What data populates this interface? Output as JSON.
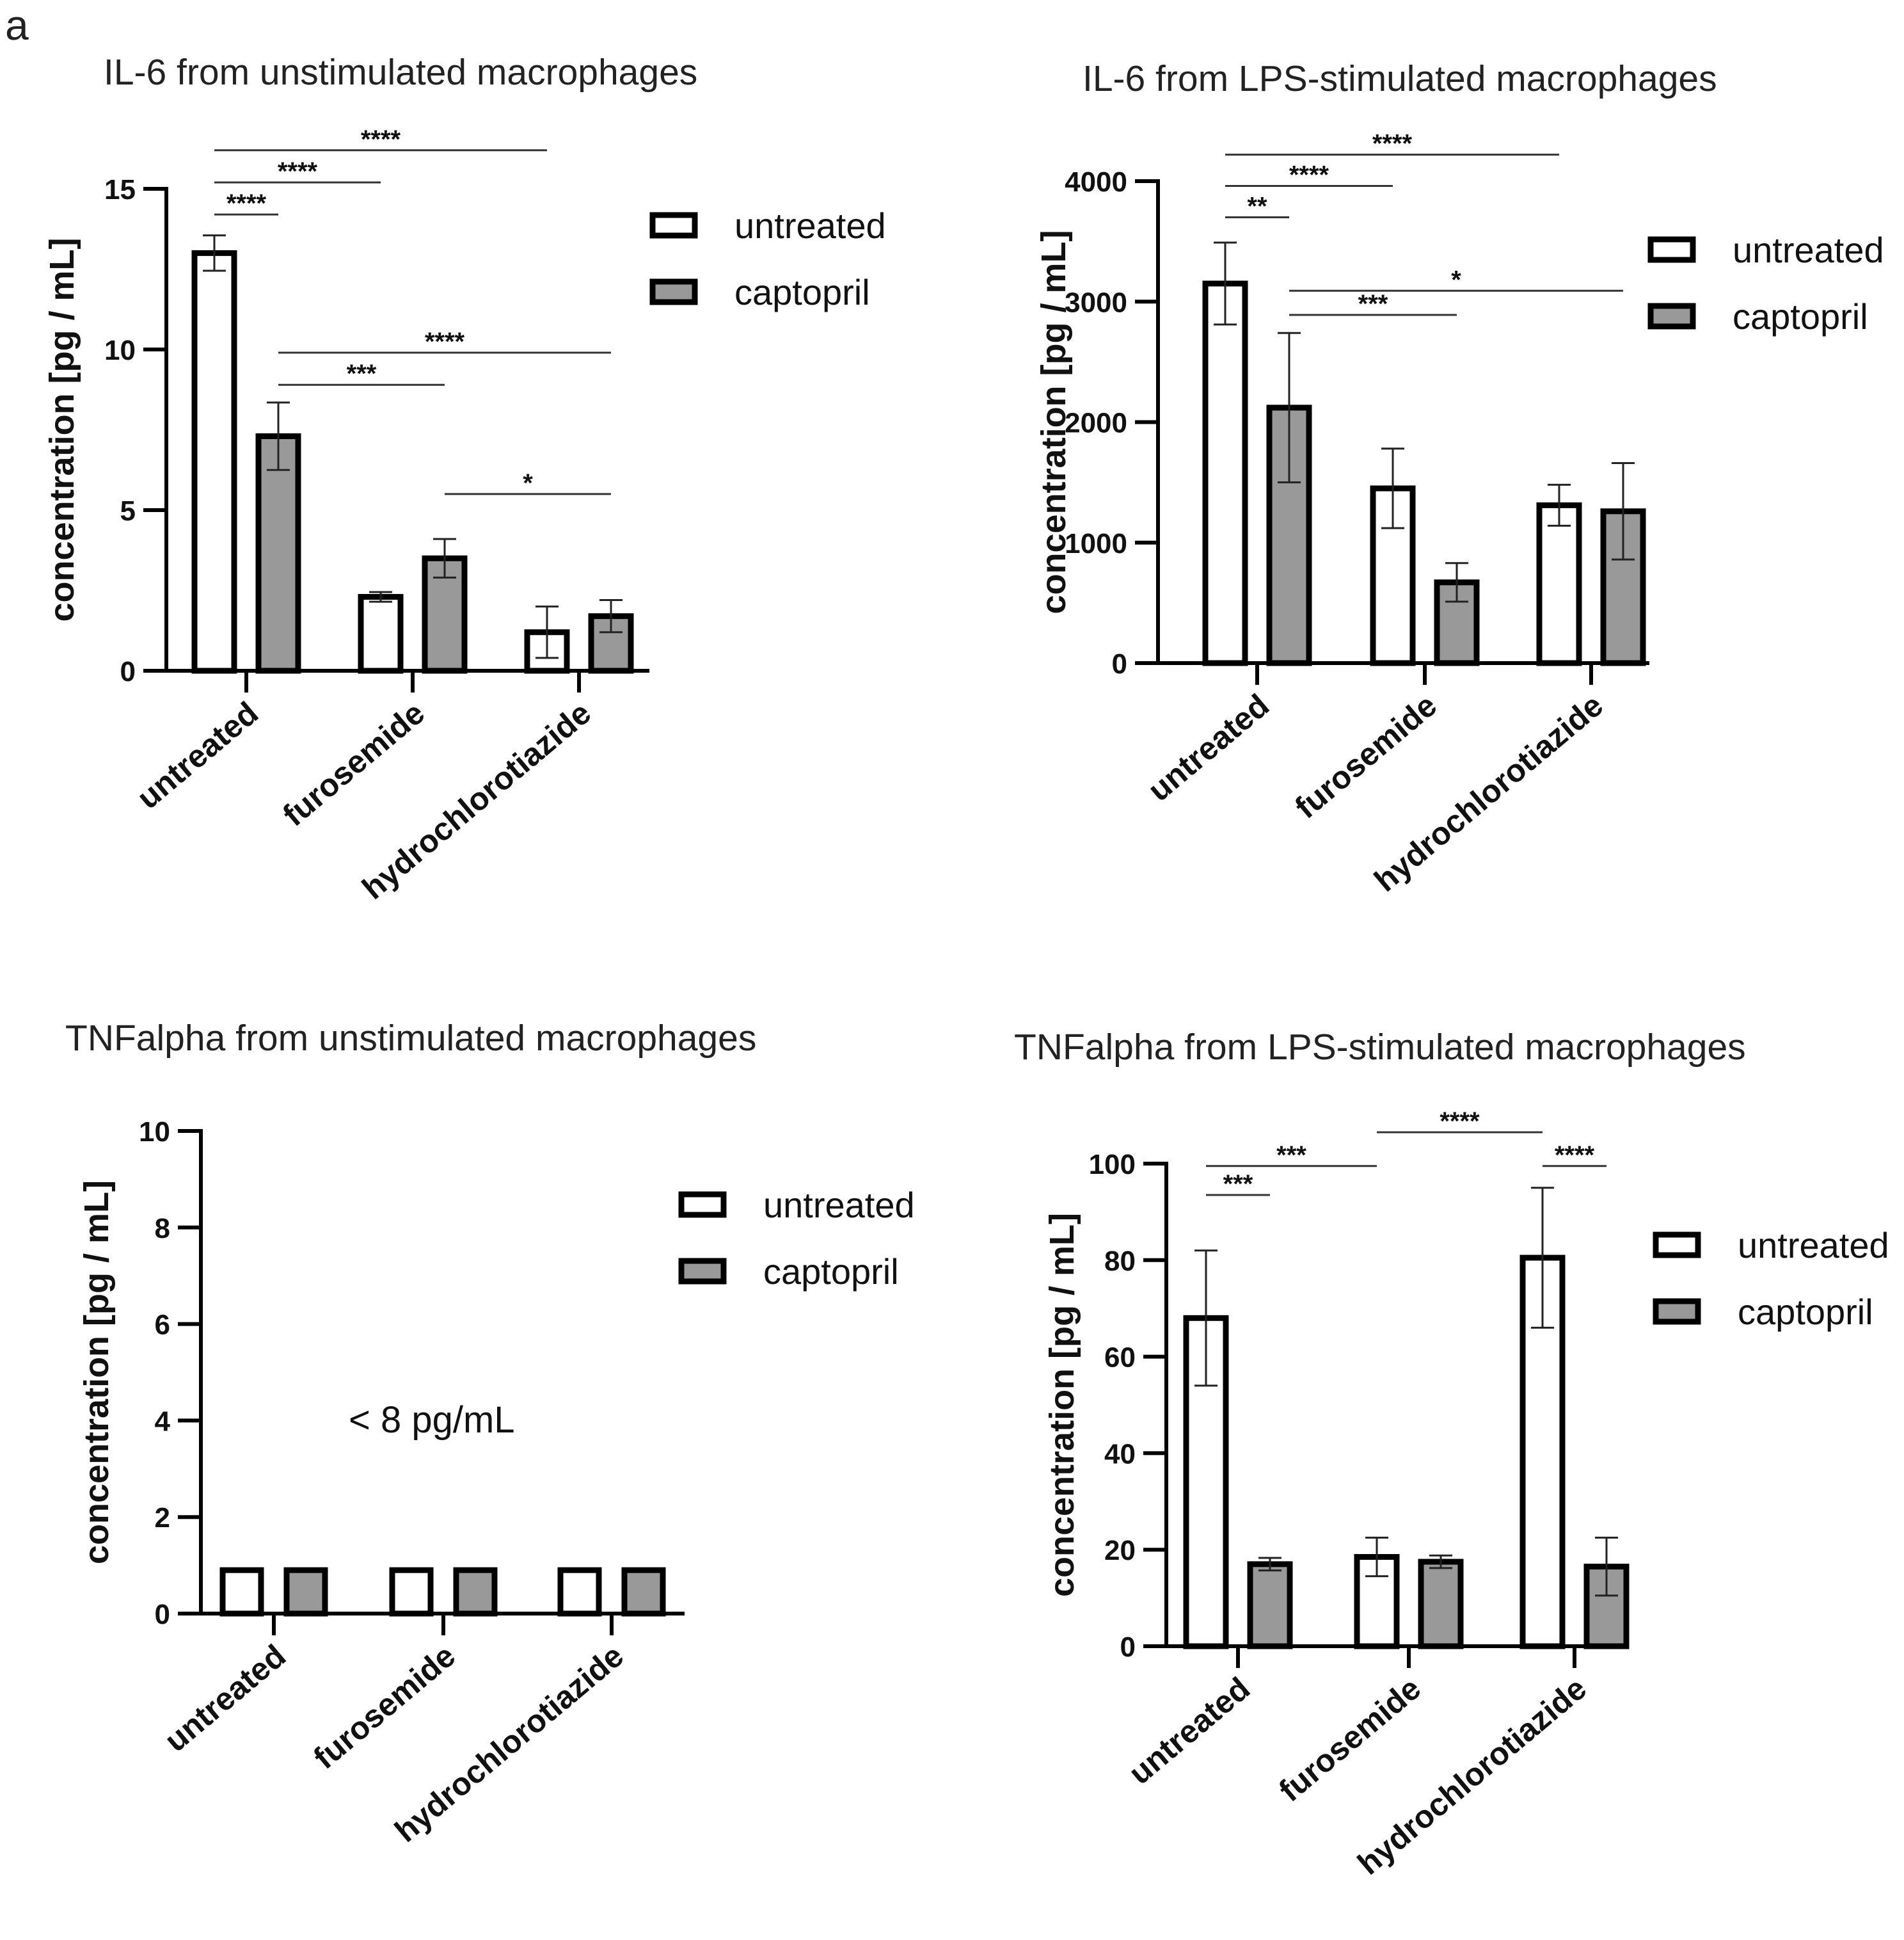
{
  "panel_letter": "a",
  "colors": {
    "untreated": "#ffffff",
    "captopril": "#999999",
    "stroke": "#000000"
  },
  "chart_data": [
    {
      "type": "bar",
      "id": "il6-unstim",
      "title": "IL-6 from unstimulated macrophages",
      "ylabel": "concentration [pg / mL]",
      "ylim": [
        0,
        15
      ],
      "yticks": [
        0,
        5,
        10,
        15
      ],
      "categories": [
        "untreated",
        "furosemide",
        "hydrochlorotiazide"
      ],
      "series": [
        {
          "name": "untreated",
          "values": [
            13.0,
            2.3,
            1.2
          ],
          "errors": [
            0.55,
            0.15,
            0.8
          ]
        },
        {
          "name": "captopril",
          "values": [
            7.3,
            3.5,
            1.7
          ],
          "errors": [
            1.05,
            0.6,
            0.5
          ]
        }
      ],
      "significance": [
        {
          "label": "****",
          "from": [
            0,
            0
          ],
          "to": [
            0,
            1
          ],
          "y": 14.2
        },
        {
          "label": "****",
          "from": [
            0,
            0
          ],
          "to": [
            1,
            0
          ],
          "y": 15.2
        },
        {
          "label": "****",
          "from": [
            0,
            0
          ],
          "to": [
            2,
            0
          ],
          "y": 16.2
        },
        {
          "label": "***",
          "from": [
            0,
            1
          ],
          "to": [
            1,
            1
          ],
          "y": 8.9
        },
        {
          "label": "****",
          "from": [
            0,
            1
          ],
          "to": [
            2,
            1
          ],
          "y": 9.9
        },
        {
          "label": "*",
          "from": [
            1,
            1
          ],
          "to": [
            2,
            1
          ],
          "y": 5.5
        }
      ],
      "legend": [
        "untreated",
        "captopril"
      ],
      "annotation": ""
    },
    {
      "type": "bar",
      "id": "il6-lps",
      "title": "IL-6 from LPS-stimulated macrophages",
      "ylabel": "concentration [pg / mL]",
      "ylim": [
        0,
        4000
      ],
      "yticks": [
        0,
        1000,
        2000,
        3000,
        4000
      ],
      "categories": [
        "untreated",
        "furosemide",
        "hydrochlorotiazide"
      ],
      "series": [
        {
          "name": "untreated",
          "values": [
            3150,
            1450,
            1310
          ],
          "errors": [
            340,
            330,
            170
          ]
        },
        {
          "name": "captopril",
          "values": [
            2120,
            670,
            1260
          ],
          "errors": [
            620,
            160,
            400
          ]
        }
      ],
      "significance": [
        {
          "label": "**",
          "from": [
            0,
            0
          ],
          "to": [
            0,
            1
          ],
          "y": 3700
        },
        {
          "label": "****",
          "from": [
            0,
            0
          ],
          "to": [
            1,
            0
          ],
          "y": 3960
        },
        {
          "label": "****",
          "from": [
            0,
            0
          ],
          "to": [
            2,
            0
          ],
          "y": 4220
        },
        {
          "label": "***",
          "from": [
            0,
            1
          ],
          "to": [
            1,
            1
          ],
          "y": 2890
        },
        {
          "label": "*",
          "from": [
            0,
            1
          ],
          "to": [
            2,
            1
          ],
          "y": 3090
        }
      ],
      "legend": [
        "untreated",
        "captopril"
      ],
      "annotation": ""
    },
    {
      "type": "bar",
      "id": "tnf-unstim",
      "title": "TNFalpha from unstimulated macrophages",
      "ylabel": "concentration [pg / mL]",
      "ylim": [
        0,
        10
      ],
      "yticks": [
        0,
        2,
        4,
        6,
        8,
        10
      ],
      "categories": [
        "untreated",
        "furosemide",
        "hydrochlorotiazide"
      ],
      "series": [
        {
          "name": "untreated",
          "values": [
            0.9,
            0.9,
            0.9
          ],
          "errors": [
            0,
            0,
            0
          ]
        },
        {
          "name": "captopril",
          "values": [
            0.9,
            0.9,
            0.9
          ],
          "errors": [
            0,
            0,
            0
          ]
        }
      ],
      "significance": [],
      "legend": [
        "untreated",
        "captopril"
      ],
      "annotation": "< 8 pg/mL"
    },
    {
      "type": "bar",
      "id": "tnf-lps",
      "title": "TNFalpha from LPS-stimulated macrophages",
      "ylabel": "concentration [pg / mL]",
      "ylim": [
        0,
        100
      ],
      "yticks": [
        0,
        20,
        40,
        60,
        80,
        100
      ],
      "categories": [
        "untreated",
        "furosemide",
        "hydrochlorotiazide"
      ],
      "series": [
        {
          "name": "untreated",
          "values": [
            68,
            18.5,
            80.5
          ],
          "errors": [
            14,
            4,
            14.5
          ]
        },
        {
          "name": "captopril",
          "values": [
            17,
            17.5,
            16.5
          ],
          "errors": [
            1.3,
            1.3,
            6
          ]
        }
      ],
      "significance": [
        {
          "label": "***",
          "from": [
            0,
            0
          ],
          "to": [
            0,
            1
          ],
          "y": 93.5
        },
        {
          "label": "***",
          "from": [
            0,
            0
          ],
          "to": [
            1,
            0
          ],
          "y": 99.5
        },
        {
          "label": "****",
          "from": [
            1,
            0
          ],
          "to": [
            2,
            0
          ],
          "y": 106.5
        },
        {
          "label": "****",
          "from": [
            2,
            0
          ],
          "to": [
            2,
            1
          ],
          "y": 99.5
        }
      ],
      "legend": [
        "untreated",
        "captopril"
      ],
      "annotation": ""
    }
  ]
}
